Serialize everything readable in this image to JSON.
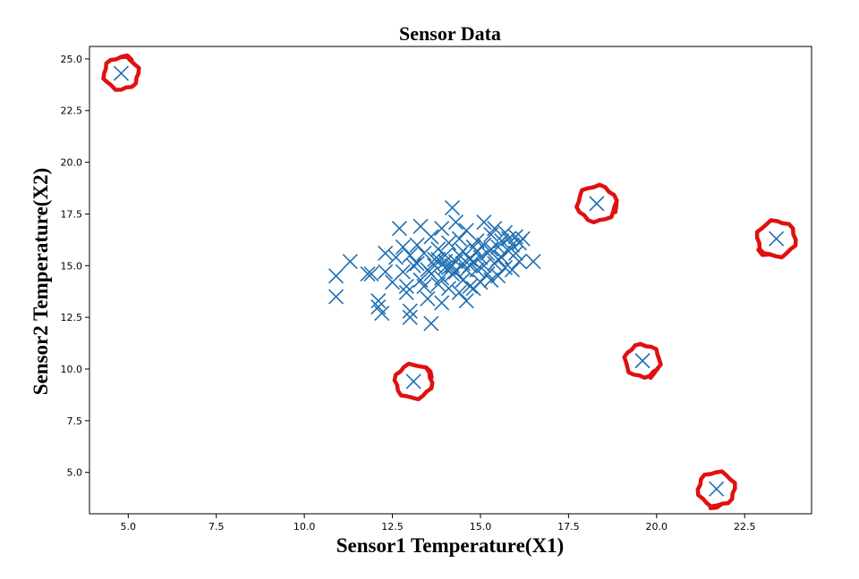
{
  "chart_data": {
    "type": "scatter",
    "title": "Sensor Data",
    "xlabel": "Sensor1 Temperature(X1)",
    "ylabel": "Sensor2 Temperature(X2)",
    "xlim": [
      3.9,
      24.4
    ],
    "ylim": [
      3.0,
      25.6
    ],
    "x_ticks": [
      "5.0",
      "7.5",
      "10.0",
      "12.5",
      "15.0",
      "17.5",
      "20.0",
      "22.5"
    ],
    "y_ticks": [
      "5.0",
      "7.5",
      "10.0",
      "12.5",
      "15.0",
      "17.5",
      "20.0",
      "22.5",
      "25.0"
    ],
    "grid": false,
    "legend": "none",
    "marker": "x",
    "colors": {
      "points": "#1f6fb2",
      "anomaly_ring": "#e01010"
    },
    "points": [
      {
        "x": 10.9,
        "y": 14.5
      },
      {
        "x": 10.9,
        "y": 13.5
      },
      {
        "x": 11.3,
        "y": 15.2
      },
      {
        "x": 11.8,
        "y": 14.6
      },
      {
        "x": 11.9,
        "y": 14.6
      },
      {
        "x": 12.1,
        "y": 13.3
      },
      {
        "x": 12.1,
        "y": 13.0
      },
      {
        "x": 12.2,
        "y": 12.7
      },
      {
        "x": 12.3,
        "y": 14.7
      },
      {
        "x": 12.3,
        "y": 15.6
      },
      {
        "x": 12.5,
        "y": 14.2
      },
      {
        "x": 12.6,
        "y": 15.4
      },
      {
        "x": 12.7,
        "y": 16.8
      },
      {
        "x": 12.8,
        "y": 15.9
      },
      {
        "x": 12.9,
        "y": 14.0
      },
      {
        "x": 12.9,
        "y": 13.7
      },
      {
        "x": 13.0,
        "y": 12.5
      },
      {
        "x": 13.0,
        "y": 12.8
      },
      {
        "x": 13.1,
        "y": 15.0
      },
      {
        "x": 13.2,
        "y": 16.0
      },
      {
        "x": 13.3,
        "y": 16.9
      },
      {
        "x": 13.3,
        "y": 14.3
      },
      {
        "x": 13.4,
        "y": 15.6
      },
      {
        "x": 13.5,
        "y": 14.8
      },
      {
        "x": 13.5,
        "y": 13.4
      },
      {
        "x": 13.6,
        "y": 12.2
      },
      {
        "x": 13.6,
        "y": 16.4
      },
      {
        "x": 13.7,
        "y": 15.3
      },
      {
        "x": 13.8,
        "y": 14.1
      },
      {
        "x": 13.8,
        "y": 15.8
      },
      {
        "x": 13.9,
        "y": 16.8
      },
      {
        "x": 13.9,
        "y": 13.2
      },
      {
        "x": 14.0,
        "y": 14.9
      },
      {
        "x": 14.0,
        "y": 15.5
      },
      {
        "x": 14.1,
        "y": 16.1
      },
      {
        "x": 14.1,
        "y": 13.9
      },
      {
        "x": 14.2,
        "y": 17.8
      },
      {
        "x": 14.2,
        "y": 14.6
      },
      {
        "x": 14.3,
        "y": 15.2
      },
      {
        "x": 14.3,
        "y": 17.1
      },
      {
        "x": 14.4,
        "y": 13.7
      },
      {
        "x": 14.4,
        "y": 16.3
      },
      {
        "x": 14.5,
        "y": 14.3
      },
      {
        "x": 14.5,
        "y": 15.7
      },
      {
        "x": 14.6,
        "y": 13.3
      },
      {
        "x": 14.6,
        "y": 16.7
      },
      {
        "x": 14.7,
        "y": 15.0
      },
      {
        "x": 14.7,
        "y": 14.0
      },
      {
        "x": 14.8,
        "y": 15.9
      },
      {
        "x": 14.8,
        "y": 13.9
      },
      {
        "x": 14.9,
        "y": 16.2
      },
      {
        "x": 14.9,
        "y": 14.8
      },
      {
        "x": 15.0,
        "y": 15.4
      },
      {
        "x": 15.0,
        "y": 14.2
      },
      {
        "x": 15.1,
        "y": 17.1
      },
      {
        "x": 15.1,
        "y": 16.0
      },
      {
        "x": 15.2,
        "y": 14.6
      },
      {
        "x": 15.2,
        "y": 15.6
      },
      {
        "x": 15.3,
        "y": 16.5
      },
      {
        "x": 15.3,
        "y": 14.3
      },
      {
        "x": 15.4,
        "y": 15.1
      },
      {
        "x": 15.4,
        "y": 16.8
      },
      {
        "x": 15.5,
        "y": 15.9
      },
      {
        "x": 15.5,
        "y": 14.5
      },
      {
        "x": 15.6,
        "y": 16.2
      },
      {
        "x": 15.6,
        "y": 15.4
      },
      {
        "x": 15.7,
        "y": 16.6
      },
      {
        "x": 15.7,
        "y": 14.9
      },
      {
        "x": 15.8,
        "y": 15.7
      },
      {
        "x": 15.8,
        "y": 16.3
      },
      {
        "x": 15.9,
        "y": 14.8
      },
      {
        "x": 15.9,
        "y": 16.0
      },
      {
        "x": 16.0,
        "y": 15.6
      },
      {
        "x": 16.0,
        "y": 16.4
      },
      {
        "x": 16.1,
        "y": 15.2
      },
      {
        "x": 16.1,
        "y": 16.1
      },
      {
        "x": 16.2,
        "y": 16.3
      },
      {
        "x": 16.5,
        "y": 15.2
      },
      {
        "x": 13.6,
        "y": 14.6
      },
      {
        "x": 13.7,
        "y": 15.0
      },
      {
        "x": 13.9,
        "y": 14.4
      },
      {
        "x": 14.0,
        "y": 15.2
      },
      {
        "x": 14.2,
        "y": 15.0
      },
      {
        "x": 14.3,
        "y": 14.7
      },
      {
        "x": 14.4,
        "y": 15.5
      },
      {
        "x": 14.5,
        "y": 15.1
      },
      {
        "x": 14.6,
        "y": 14.8
      },
      {
        "x": 14.1,
        "y": 14.9
      },
      {
        "x": 13.8,
        "y": 15.3
      },
      {
        "x": 14.7,
        "y": 15.3
      },
      {
        "x": 13.4,
        "y": 14.0
      },
      {
        "x": 13.2,
        "y": 15.1
      },
      {
        "x": 12.8,
        "y": 14.7
      },
      {
        "x": 13.0,
        "y": 15.5
      },
      {
        "x": 15.3,
        "y": 15.8
      },
      {
        "x": 14.9,
        "y": 15.7
      },
      {
        "x": 14.8,
        "y": 15.2
      },
      {
        "x": 15.1,
        "y": 15.0
      },
      {
        "x": 15.5,
        "y": 15.3
      },
      {
        "x": 4.8,
        "y": 24.3
      },
      {
        "x": 13.1,
        "y": 9.4
      },
      {
        "x": 18.3,
        "y": 18.0
      },
      {
        "x": 19.6,
        "y": 10.4
      },
      {
        "x": 21.7,
        "y": 4.2
      },
      {
        "x": 23.4,
        "y": 16.3
      }
    ],
    "annotations": {
      "type": "hand-drawn red circles",
      "circled_points": [
        {
          "x": 4.8,
          "y": 24.3
        },
        {
          "x": 13.1,
          "y": 9.4
        },
        {
          "x": 18.3,
          "y": 18.0
        },
        {
          "x": 19.6,
          "y": 10.4
        },
        {
          "x": 21.7,
          "y": 4.2
        },
        {
          "x": 23.4,
          "y": 16.3
        }
      ]
    }
  }
}
